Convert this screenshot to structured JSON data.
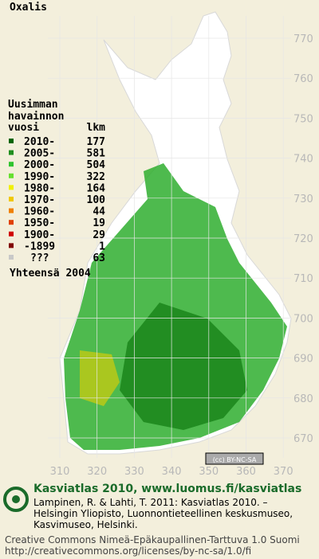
{
  "title": "Oxalis",
  "legend": {
    "heading": [
      "Uusimman",
      "havainnon",
      "vuosi"
    ],
    "count_heading": "lkm",
    "rows": [
      {
        "label": "2010-",
        "count": 177,
        "color": "#006400"
      },
      {
        "label": "2005-",
        "count": 581,
        "color": "#1f8f1f"
      },
      {
        "label": "2000-",
        "count": 504,
        "color": "#2fc42f"
      },
      {
        "label": "1990-",
        "count": 322,
        "color": "#66e030"
      },
      {
        "label": "1980-",
        "count": 164,
        "color": "#f0f000"
      },
      {
        "label": "1970-",
        "count": 100,
        "color": "#f0c800"
      },
      {
        "label": "1960-",
        "count": 44,
        "color": "#f08000"
      },
      {
        "label": "1950-",
        "count": 19,
        "color": "#e04000"
      },
      {
        "label": "1900-",
        "count": 29,
        "color": "#d00000"
      },
      {
        "label": "-1899",
        "count": 1,
        "color": "#800000"
      },
      {
        "label": "???",
        "count": 63,
        "color": "#c8c8c8"
      }
    ],
    "total": "Yhteensä 2004"
  },
  "grid": {
    "y_labels": [
      770,
      760,
      750,
      740,
      730,
      720,
      710,
      700,
      690,
      680,
      670
    ],
    "x_labels": [
      310,
      320,
      330,
      340,
      350,
      360,
      370
    ]
  },
  "license_badge": "(cc) BY-NC-SA",
  "footer": {
    "heading": "Kasviatlas 2010, www.luomus.fi/kasviatlas",
    "citation": [
      "Lampinen, R. & Lahti, T. 2011: Kasviatlas 2010. –",
      "Helsingin Yliopisto, Luonnontieteellinen keskusmuseo,",
      "Kasvimuseo, Helsinki."
    ],
    "license": [
      "Creative Commons Nimeä-Epäkaupallinen-Tarttuva 1.0 Suomi",
      "http://creativecommons.org/licenses/by-nc-sa/1.0/fi"
    ]
  }
}
